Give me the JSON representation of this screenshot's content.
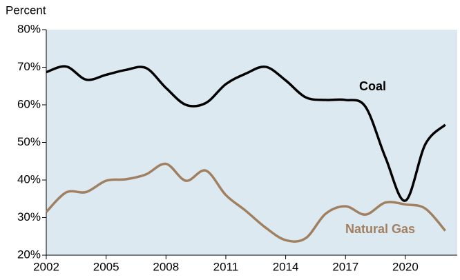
{
  "chart_data": {
    "type": "line",
    "y_axis_label": "Percent",
    "x": [
      2002,
      2003,
      2004,
      2005,
      2006,
      2007,
      2008,
      2009,
      2010,
      2011,
      2012,
      2013,
      2014,
      2015,
      2016,
      2017,
      2018,
      2019,
      2020,
      2021,
      2022
    ],
    "series": [
      {
        "name": "Coal",
        "color": "#000000",
        "values": [
          68.7,
          70.2,
          66.7,
          68,
          69.3,
          69.8,
          64.5,
          60,
          60.5,
          65.5,
          68.3,
          70.1,
          66.5,
          62,
          61.3,
          61.3,
          59.5,
          46,
          34.5,
          49.5,
          54.7
        ]
      },
      {
        "name": "Natural Gas",
        "color": "#a08060",
        "values": [
          31.5,
          36.7,
          36.8,
          39.8,
          40.2,
          41.5,
          44.3,
          39.8,
          42.5,
          36,
          31.8,
          27.3,
          24,
          24.5,
          31,
          33,
          30.8,
          34,
          33.5,
          32.4,
          26.5
        ]
      }
    ],
    "xlim": [
      2002,
      2022.6
    ],
    "xticks": [
      2002,
      2005,
      2008,
      2011,
      2014,
      2017,
      2020
    ],
    "ylim": [
      20,
      80
    ],
    "yticks": [
      {
        "value": 20,
        "label": "20%"
      },
      {
        "value": 30,
        "label": "30%"
      },
      {
        "value": 40,
        "label": "40%"
      },
      {
        "value": 50,
        "label": "50%"
      },
      {
        "value": 60,
        "label": "60%"
      },
      {
        "value": 70,
        "label": "70%"
      },
      {
        "value": 80,
        "label": "80%"
      }
    ]
  }
}
